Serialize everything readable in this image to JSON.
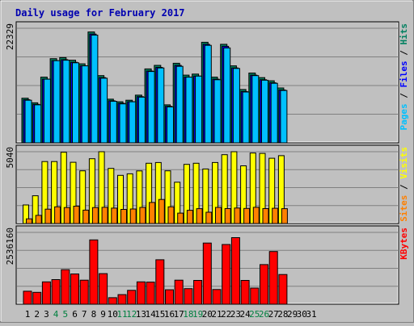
{
  "title": "Daily usage for February 2017",
  "colors": {
    "background": "#c0c0c0",
    "title": "#0000b0",
    "hits": "#008060",
    "files": "#0000ff",
    "pages": "#00c0ff",
    "visits": "#ffff00",
    "sites": "#ff8000",
    "kbytes": "#ff0000",
    "weekend_day": "#008040",
    "weekday": "#000000"
  },
  "chart_data": {
    "type": "bar",
    "days": [
      "1",
      "2",
      "3",
      "4",
      "5",
      "6",
      "7",
      "8",
      "9",
      "10",
      "11",
      "12",
      "13",
      "14",
      "15",
      "16",
      "17",
      "18",
      "19",
      "20",
      "21",
      "22",
      "23",
      "24",
      "25",
      "26",
      "27",
      "28",
      "29",
      "30",
      "31"
    ],
    "weekend_days": [
      4,
      5,
      11,
      12,
      18,
      19,
      25,
      26
    ],
    "panels": [
      {
        "name": "top",
        "max_label": "22329",
        "ymax": 22329,
        "right_legend": [
          {
            "text": "Pages",
            "color": "#00c0ff"
          },
          {
            "text": " / ",
            "color": "#000000"
          },
          {
            "text": "Files",
            "color": "#0000ff"
          },
          {
            "text": " / ",
            "color": "#000000"
          },
          {
            "text": "Hits",
            "color": "#008060"
          }
        ],
        "series": [
          {
            "name": "Hits",
            "color": "#008060",
            "values": [
              8700,
              7800,
              12800,
              16400,
              16600,
              16100,
              15400,
              21600,
              13100,
              8500,
              8000,
              8300,
              9300,
              14400,
              15100,
              7400,
              15500,
              13200,
              13400,
              19600,
              12800,
              19200,
              15000,
              10400,
              13600,
              12700,
              12100,
              10700
            ]
          },
          {
            "name": "Files",
            "color": "#0000ff",
            "values": [
              8400,
              7500,
              12400,
              16000,
              16200,
              15700,
              15000,
              21200,
              12700,
              8200,
              7700,
              8000,
              9000,
              14000,
              14700,
              7100,
              15100,
              12800,
              13000,
              19200,
              12400,
              18800,
              14600,
              10000,
              13200,
              12300,
              11700,
              10300
            ]
          },
          {
            "name": "Pages",
            "color": "#00c0ff",
            "values": [
              8300,
              7400,
              12400,
              16000,
              16100,
              15600,
              15000,
              21000,
              12600,
              8100,
              7600,
              8000,
              8900,
              13900,
              14600,
              7000,
              14900,
              12800,
              13000,
              19000,
              12300,
              18500,
              14500,
              9900,
              13100,
              12200,
              11600,
              10200
            ]
          }
        ]
      },
      {
        "name": "middle",
        "max_label": "5040",
        "ymax": 5040,
        "right_legend": [
          {
            "text": "Sites",
            "color": "#ff8000"
          },
          {
            "text": " / ",
            "color": "#000000"
          },
          {
            "text": "Visits",
            "color": "#ffff00"
          }
        ],
        "series": [
          {
            "name": "Visits",
            "color": "#ffff00",
            "values": [
              1300,
              1950,
              4350,
              4350,
              5000,
              4300,
              3700,
              4550,
              5040,
              3870,
              3380,
              3490,
              3690,
              4230,
              4280,
              3700,
              2900,
              4150,
              4230,
              3830,
              4280,
              4830,
              5040,
              4050,
              4950,
              4920,
              4580,
              4760
            ]
          },
          {
            "name": "Sites",
            "color": "#ff8000",
            "values": [
              330,
              570,
              1010,
              1170,
              1120,
              1220,
              940,
              1120,
              1140,
              1080,
              990,
              1020,
              1130,
              1480,
              1690,
              1170,
              730,
              930,
              1040,
              790,
              1130,
              1050,
              1090,
              1060,
              1140,
              1050,
              1070,
              1040
            ]
          }
        ]
      },
      {
        "name": "bottom",
        "max_label": "2536160",
        "ymax": 2536160,
        "right_legend": [
          {
            "text": "KBytes",
            "color": "#ff0000"
          }
        ],
        "series": [
          {
            "name": "KBytes",
            "color": "#ff0000",
            "values": [
              460000,
              420000,
              790000,
              870000,
              1220000,
              1070000,
              850000,
              2270000,
              1080000,
              230000,
              340000,
              490000,
              790000,
              780000,
              1570000,
              510000,
              850000,
              550000,
              840000,
              2160000,
              520000,
              2110000,
              2350000,
              840000,
              570000,
              1400000,
              1860000,
              1050000
            ]
          }
        ]
      }
    ]
  }
}
